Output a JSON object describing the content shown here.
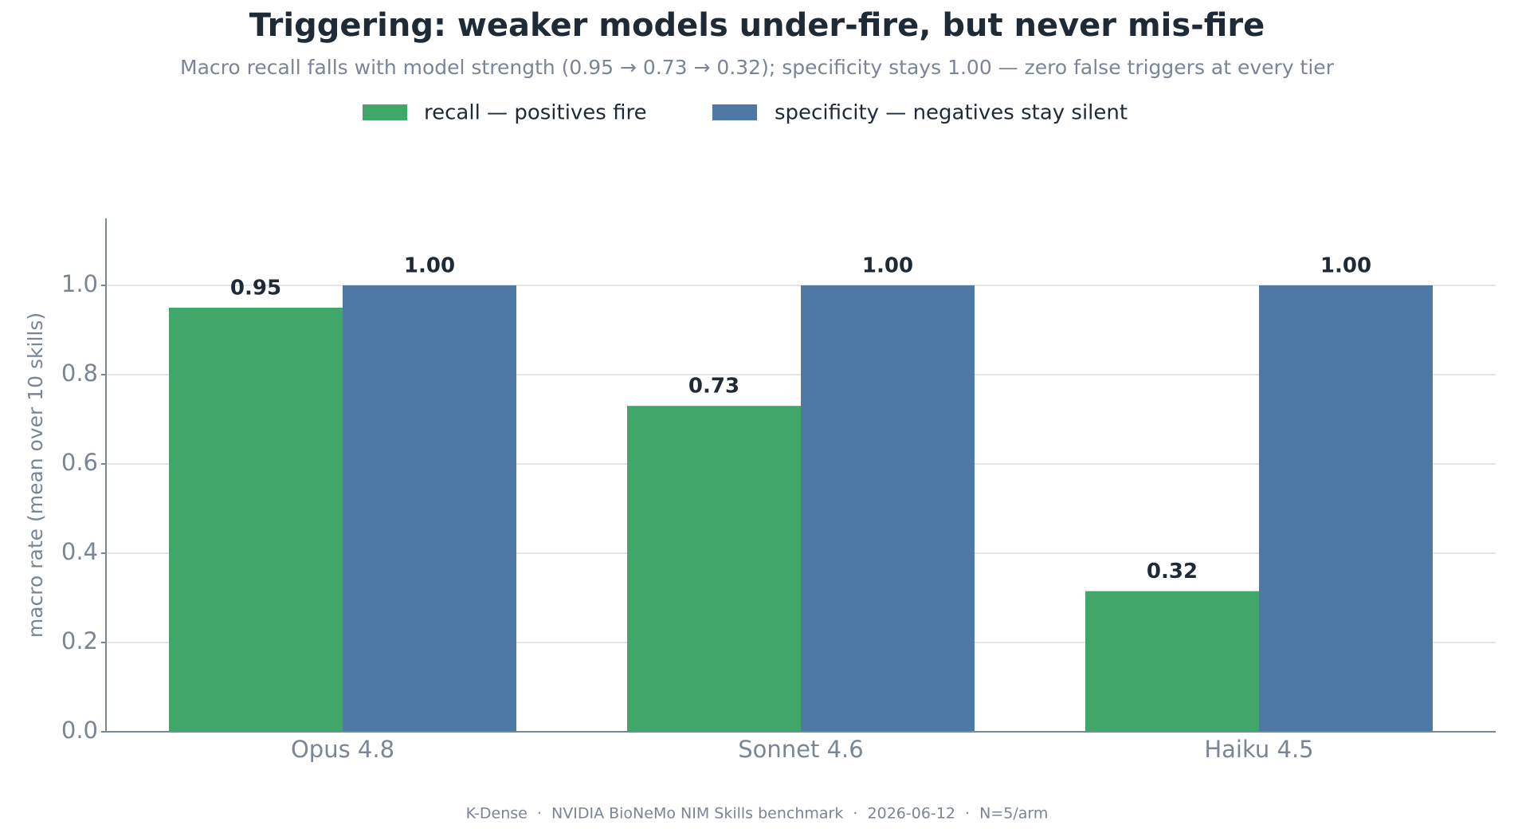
{
  "chart_data": {
    "type": "bar",
    "title": "Triggering: weaker models under-fire, but never mis-fire",
    "subtitle": "Macro recall falls with model strength (0.95 → 0.73 → 0.32); specificity stays 1.00 — zero false triggers at every tier",
    "y_label": "macro rate (mean over 10 skills)",
    "footer": "K-Dense  ·  NVIDIA BioNeMo NIM Skills benchmark  ·  2026-06-12  ·  N=5/arm",
    "categories": [
      "Opus 4.8",
      "Sonnet 4.6",
      "Haiku 4.5"
    ],
    "series": [
      {
        "name": "recall — positives fire",
        "color": "#41a66a",
        "values": [
          0.95,
          0.73,
          0.315
        ],
        "value_labels": [
          "0.95",
          "0.73",
          "0.32"
        ]
      },
      {
        "name": "specificity — negatives stay silent",
        "color": "#4e79a7",
        "values": [
          1.0,
          1.0,
          1.0
        ],
        "value_labels": [
          "1.00",
          "1.00",
          "1.00"
        ]
      }
    ],
    "ylim": [
      0,
      1.15
    ],
    "yticks": [
      {
        "value": 0,
        "label": "0.0"
      },
      0.2,
      0.4,
      0.6,
      0.8,
      {
        "value": 1,
        "label": "1.0"
      }
    ],
    "grid": true,
    "legend": "top"
  }
}
